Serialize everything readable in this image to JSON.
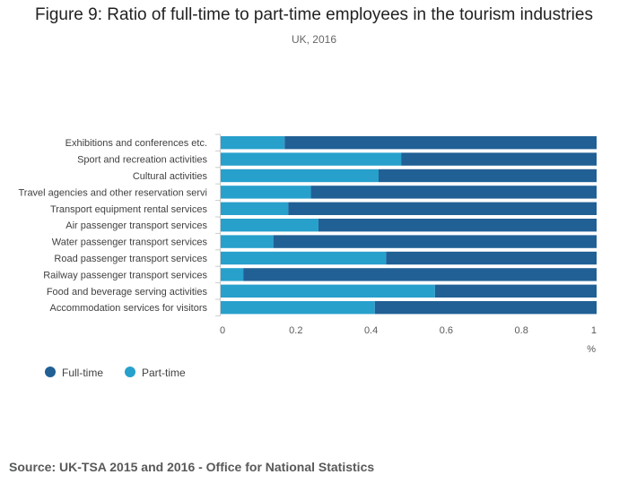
{
  "chart_data": {
    "type": "bar",
    "stacked": true,
    "orientation": "horizontal",
    "title": "Figure 9: Ratio of full-time to part-time employees in the tourism industries",
    "subtitle": "UK, 2016",
    "xlabel": "%",
    "xlim": [
      0,
      1
    ],
    "xticks": [
      "0",
      "0.2",
      "0.4",
      "0.6",
      "0.8",
      "1"
    ],
    "xtick_values": [
      0,
      0.2,
      0.4,
      0.6,
      0.8,
      1
    ],
    "categories": [
      "Exhibitions and conferences etc.",
      "Sport and recreation activities",
      "Cultural activities",
      "Travel agencies and other reservation servi",
      "Transport equipment rental services",
      "Air passenger transport services",
      "Water passenger transport services",
      "Road passenger transport services",
      "Railway passenger transport services",
      "Food and beverage serving activities",
      "Accommodation services for visitors"
    ],
    "series": [
      {
        "name": "Part-time",
        "color": "#27a0cc",
        "values": [
          0.17,
          0.48,
          0.42,
          0.24,
          0.18,
          0.26,
          0.14,
          0.44,
          0.06,
          0.57,
          0.41
        ]
      },
      {
        "name": "Full-time",
        "color": "#206095",
        "values": [
          0.83,
          0.52,
          0.58,
          0.76,
          0.82,
          0.74,
          0.86,
          0.56,
          0.94,
          0.43,
          0.59
        ]
      }
    ],
    "legend": [
      {
        "name": "Full-time",
        "color": "#206095"
      },
      {
        "name": "Part-time",
        "color": "#27a0cc"
      }
    ],
    "legend_position": "bottom-left",
    "grid": false
  },
  "source": "Source: UK-TSA 2015 and 2016 - Office for National Statistics"
}
